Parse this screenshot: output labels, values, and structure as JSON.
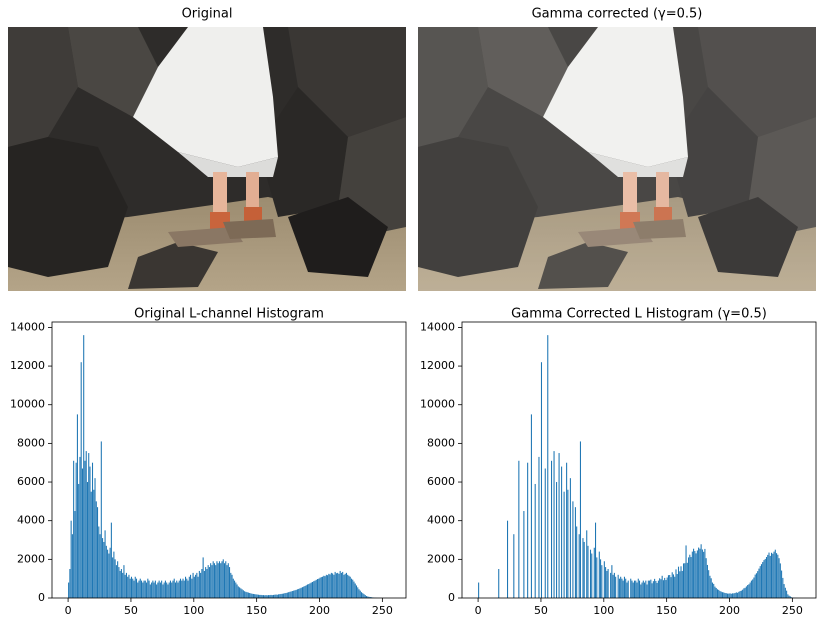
{
  "images": [
    {
      "title": "Original"
    },
    {
      "title": "Gamma corrected (γ=0.5)"
    }
  ],
  "chart_data": [
    {
      "type": "histogram",
      "title": "Original L-channel Histogram",
      "color": "#1f77b4",
      "xlim": [
        -12.8,
        268.8
      ],
      "xticks": [
        0,
        50,
        100,
        150,
        200,
        250
      ],
      "ylim": [
        0,
        14280
      ],
      "yticks": [
        0,
        2000,
        4000,
        6000,
        8000,
        10000,
        12000,
        14000
      ],
      "bins": [
        0,
        1,
        2,
        3,
        4,
        5,
        6,
        7,
        8,
        9,
        10,
        11,
        12,
        13,
        14,
        15,
        16,
        17,
        18,
        19,
        20,
        21,
        22,
        23,
        24,
        25,
        26,
        27,
        28,
        29,
        30,
        31,
        32,
        33,
        34,
        35,
        36,
        37,
        38,
        39,
        40,
        41,
        42,
        43,
        44,
        45,
        46,
        47,
        48,
        49,
        50,
        51,
        52,
        53,
        54,
        55,
        56,
        57,
        58,
        59,
        60,
        61,
        62,
        63,
        64,
        65,
        66,
        67,
        68,
        69,
        70,
        71,
        72,
        73,
        74,
        75,
        76,
        77,
        78,
        79,
        80,
        81,
        82,
        83,
        84,
        85,
        86,
        87,
        88,
        89,
        90,
        91,
        92,
        93,
        94,
        95,
        96,
        97,
        98,
        99,
        100,
        101,
        102,
        103,
        104,
        105,
        106,
        107,
        108,
        109,
        110,
        111,
        112,
        113,
        114,
        115,
        116,
        117,
        118,
        119,
        120,
        121,
        122,
        123,
        124,
        125,
        126,
        127,
        128,
        129,
        130,
        131,
        132,
        133,
        134,
        135,
        136,
        137,
        138,
        139,
        140,
        141,
        142,
        143,
        144,
        145,
        146,
        147,
        148,
        149,
        150,
        151,
        152,
        153,
        154,
        155,
        156,
        157,
        158,
        159,
        160,
        161,
        162,
        163,
        164,
        165,
        166,
        167,
        168,
        169,
        170,
        171,
        172,
        173,
        174,
        175,
        176,
        177,
        178,
        179,
        180,
        181,
        182,
        183,
        184,
        185,
        186,
        187,
        188,
        189,
        190,
        191,
        192,
        193,
        194,
        195,
        196,
        197,
        198,
        199,
        200,
        201,
        202,
        203,
        204,
        205,
        206,
        207,
        208,
        209,
        210,
        211,
        212,
        213,
        214,
        215,
        216,
        217,
        218,
        219,
        220,
        221,
        222,
        223,
        224,
        225,
        226,
        227,
        228,
        229,
        230,
        231,
        232,
        233,
        234,
        235,
        236,
        237,
        238,
        239,
        240,
        241,
        242,
        243,
        244,
        245,
        246,
        247,
        248,
        249,
        250,
        251,
        252,
        253,
        254,
        255,
        256
      ],
      "values": [
        800,
        1500,
        4000,
        3300,
        7100,
        4500,
        7000,
        9500,
        5900,
        7300,
        12200,
        6700,
        13600,
        7100,
        7600,
        6000,
        7500,
        6800,
        5500,
        7000,
        5600,
        6200,
        5000,
        4700,
        3700,
        3300,
        8100,
        3100,
        2900,
        3500,
        2700,
        2500,
        2300,
        2600,
        3900,
        2100,
        2400,
        2000,
        1700,
        1900,
        1600,
        1400,
        1500,
        1300,
        1700,
        1200,
        1300,
        1100,
        1200,
        1000,
        1100,
        1000,
        900,
        1100,
        1000,
        800,
        900,
        1000,
        900,
        800,
        900,
        900,
        800,
        1000,
        900,
        700,
        800,
        900,
        800,
        900,
        700,
        800,
        900,
        800,
        900,
        700,
        800,
        900,
        800,
        700,
        800,
        900,
        800,
        900,
        1000,
        800,
        900,
        800,
        900,
        1000,
        900,
        1000,
        900,
        1100,
        1000,
        900,
        1100,
        1200,
        1000,
        1300,
        1100,
        1200,
        1300,
        1100,
        1400,
        1300,
        1500,
        2100,
        1400,
        1600,
        1500,
        1700,
        1600,
        1800,
        1700,
        1900,
        1800,
        1700,
        1900,
        1800,
        1900,
        1800,
        1900,
        2000,
        1800,
        1900,
        1700,
        1800,
        1600,
        1300,
        1200,
        1000,
        900,
        800,
        700,
        600,
        550,
        500,
        450,
        400,
        350,
        320,
        300,
        280,
        260,
        240,
        220,
        210,
        200,
        190,
        180,
        170,
        160,
        160,
        150,
        150,
        140,
        150,
        140,
        150,
        150,
        160,
        150,
        160,
        170,
        180,
        170,
        190,
        200,
        210,
        220,
        230,
        250,
        260,
        280,
        300,
        320,
        340,
        360,
        380,
        400,
        420,
        450,
        470,
        500,
        530,
        560,
        590,
        620,
        660,
        700,
        720,
        760,
        800,
        830,
        870,
        900,
        940,
        980,
        1000,
        1050,
        1080,
        1100,
        1150,
        1130,
        1200,
        1180,
        1250,
        1220,
        1300,
        1270,
        1200,
        1350,
        1280,
        1300,
        1250,
        1400,
        1300,
        1350,
        1200,
        1250,
        1300,
        1200,
        1150,
        1100,
        1000,
        950,
        850,
        750,
        650,
        550,
        450,
        380,
        300,
        250,
        200,
        150,
        100,
        80,
        60,
        50,
        40,
        30,
        20,
        15,
        10,
        8,
        5,
        4,
        3,
        2,
        2,
        1,
        1,
        0,
        0
      ]
    },
    {
      "type": "histogram",
      "title": "Gamma Corrected L Histogram (γ=0.5)",
      "color": "#1f77b4",
      "xlim": [
        -12.8,
        268.8
      ],
      "xticks": [
        0,
        50,
        100,
        150,
        200,
        250
      ],
      "ylim": [
        0,
        14280
      ],
      "yticks": [
        0,
        2000,
        4000,
        6000,
        8000,
        10000,
        12000,
        14000
      ],
      "bins": [
        0,
        1,
        2,
        3,
        4,
        5,
        6,
        7,
        8,
        9,
        10,
        11,
        12,
        13,
        14,
        15,
        16,
        17,
        18,
        19,
        20,
        21,
        22,
        23,
        24,
        25,
        26,
        27,
        28,
        29,
        30,
        31,
        32,
        33,
        34,
        35,
        36,
        37,
        38,
        39,
        40,
        41,
        42,
        43,
        44,
        45,
        46,
        47,
        48,
        49,
        50,
        51,
        52,
        53,
        54,
        55,
        56,
        57,
        58,
        59,
        60,
        61,
        62,
        63,
        64,
        65,
        66,
        67,
        68,
        69,
        70,
        71,
        72,
        73,
        74,
        75,
        76,
        77,
        78,
        79,
        80,
        81,
        82,
        83,
        84,
        85,
        86,
        87,
        88,
        89,
        90,
        91,
        92,
        93,
        94,
        95,
        96,
        97,
        98,
        99,
        100,
        101,
        102,
        103,
        104,
        105,
        106,
        107,
        108,
        109,
        110,
        111,
        112,
        113,
        114,
        115,
        116,
        117,
        118,
        119,
        120,
        121,
        122,
        123,
        124,
        125,
        126,
        127,
        128,
        129,
        130,
        131,
        132,
        133,
        134,
        135,
        136,
        137,
        138,
        139,
        140,
        141,
        142,
        143,
        144,
        145,
        146,
        147,
        148,
        149,
        150,
        151,
        152,
        153,
        154,
        155,
        156,
        157,
        158,
        159,
        160,
        161,
        162,
        163,
        164,
        165,
        166,
        167,
        168,
        169,
        170,
        171,
        172,
        173,
        174,
        175,
        176,
        177,
        178,
        179,
        180,
        181,
        182,
        183,
        184,
        185,
        186,
        187,
        188,
        189,
        190,
        191,
        192,
        193,
        194,
        195,
        196,
        197,
        198,
        199,
        200,
        201,
        202,
        203,
        204,
        205,
        206,
        207,
        208,
        209,
        210,
        211,
        212,
        213,
        214,
        215,
        216,
        217,
        218,
        219,
        220,
        221,
        222,
        223,
        224,
        225,
        226,
        227,
        228,
        229,
        230,
        231,
        232,
        233,
        234,
        235,
        236,
        237,
        238,
        239,
        240,
        241,
        242,
        243,
        244,
        245,
        246,
        247,
        248,
        249,
        250,
        251,
        252,
        253,
        254,
        255,
        256
      ],
      "values": [
        800,
        0,
        0,
        0,
        0,
        0,
        0,
        0,
        0,
        0,
        0,
        0,
        0,
        0,
        0,
        0,
        1500,
        0,
        0,
        0,
        0,
        0,
        0,
        4000,
        0,
        0,
        0,
        0,
        3300,
        0,
        0,
        0,
        7100,
        0,
        0,
        0,
        4500,
        0,
        0,
        7000,
        0,
        0,
        9500,
        0,
        0,
        5900,
        0,
        0,
        7300,
        0,
        12200,
        0,
        0,
        6700,
        0,
        13600,
        0,
        0,
        7100,
        0,
        7600,
        0,
        6000,
        0,
        7500,
        0,
        6800,
        0,
        5500,
        0,
        7000,
        5600,
        0,
        6200,
        0,
        5000,
        0,
        4700,
        3700,
        0,
        3300,
        8100,
        0,
        3100,
        2900,
        0,
        3500,
        2700,
        0,
        2500,
        2300,
        0,
        2600,
        3900,
        2100,
        0,
        2400,
        2000,
        1700,
        0,
        1900,
        1600,
        1400,
        1500,
        0,
        1300,
        1700,
        1200,
        1300,
        1100,
        0,
        1200,
        1000,
        1100,
        1000,
        900,
        1100,
        1000,
        800,
        900,
        0,
        1000,
        900,
        800,
        900,
        900,
        800,
        1000,
        900,
        700,
        800,
        900,
        800,
        900,
        700,
        900,
        900,
        950,
        760,
        870,
        990,
        880,
        780,
        900,
        1020,
        970,
        1150,
        920,
        1040,
        930,
        1060,
        1180,
        1190,
        1080,
        1330,
        1220,
        1100,
        1480,
        1240,
        1620,
        1380,
        1640,
        1400,
        1790,
        1800,
        2720,
        1820,
        2100,
        2240,
        2120,
        2400,
        2550,
        2430,
        2310,
        2460,
        2610,
        2550,
        2780,
        2510,
        2390,
        2540,
        2060,
        1710,
        1440,
        1150,
        1020,
        800,
        730,
        590,
        520,
        450,
        420,
        360,
        330,
        300,
        290,
        260,
        250,
        230,
        230,
        240,
        220,
        240,
        240,
        260,
        290,
        270,
        320,
        360,
        380,
        430,
        500,
        530,
        600,
        670,
        710,
        800,
        900,
        960,
        1060,
        1210,
        1280,
        1390,
        1520,
        1650,
        1750,
        1860,
        1960,
        2020,
        2120,
        2230,
        2350,
        2180,
        2340,
        2290,
        2400,
        2500,
        2320,
        2240,
        2060,
        1790,
        1420,
        1040,
        720,
        530,
        380,
        190,
        120,
        80,
        40,
        20,
        10,
        6,
        4,
        2,
        0
      ]
    }
  ]
}
